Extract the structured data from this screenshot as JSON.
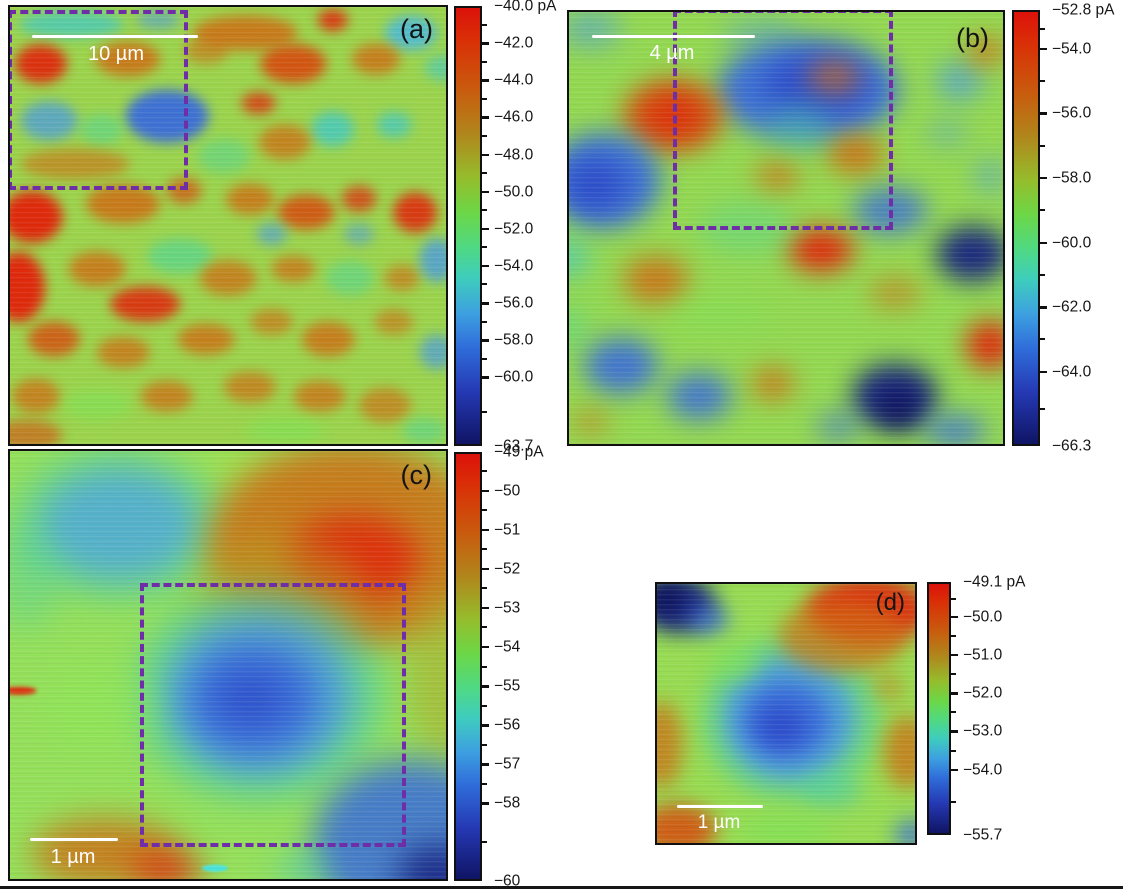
{
  "accent_colors": {
    "zoom_box_purple": "#7030a0",
    "scale_bar_white": "#ffffff"
  },
  "panels": [
    {
      "id": "a",
      "label": "(a)",
      "scale_bar": "10 µm",
      "has_zoom_box": true,
      "colorbar": {
        "unit": "pA",
        "ticks": [
          {
            "label": "−40.0 pA",
            "pos": 0
          },
          {
            "label": "−42.0",
            "pos": 0.0844
          },
          {
            "label": "−44.0",
            "pos": 0.1688
          },
          {
            "label": "−46.0",
            "pos": 0.2532
          },
          {
            "label": "−48.0",
            "pos": 0.3376
          },
          {
            "label": "−50.0",
            "pos": 0.4219
          },
          {
            "label": "−52.0",
            "pos": 0.5063
          },
          {
            "label": "−54.0",
            "pos": 0.5907
          },
          {
            "label": "−56.0",
            "pos": 0.6751
          },
          {
            "label": "−58.0",
            "pos": 0.7595
          },
          {
            "label": "−60.0",
            "pos": 0.8439
          },
          {
            "label": "−63.7",
            "pos": 1
          }
        ]
      }
    },
    {
      "id": "b",
      "label": "(b)",
      "scale_bar": "4 µm",
      "has_zoom_box": true,
      "colorbar": {
        "unit": "pA",
        "ticks": [
          {
            "label": "−52.8 pA",
            "pos": 0
          },
          {
            "label": "−54.0",
            "pos": 0.0889
          },
          {
            "label": "−56.0",
            "pos": 0.237
          },
          {
            "label": "−58.0",
            "pos": 0.3852
          },
          {
            "label": "−60.0",
            "pos": 0.5333
          },
          {
            "label": "−62.0",
            "pos": 0.6815
          },
          {
            "label": "−64.0",
            "pos": 0.8296
          },
          {
            "label": "−66.3",
            "pos": 1
          }
        ]
      }
    },
    {
      "id": "c",
      "label": "(c)",
      "scale_bar": "1 µm",
      "has_zoom_box": true,
      "colorbar": {
        "unit": "pA",
        "ticks": [
          {
            "label": "−49 pA",
            "pos": 0
          },
          {
            "label": "−50",
            "pos": 0.0909
          },
          {
            "label": "−51",
            "pos": 0.1818
          },
          {
            "label": "−52",
            "pos": 0.2727
          },
          {
            "label": "−53",
            "pos": 0.3636
          },
          {
            "label": "−54",
            "pos": 0.4545
          },
          {
            "label": "−55",
            "pos": 0.5455
          },
          {
            "label": "−56",
            "pos": 0.6364
          },
          {
            "label": "−57",
            "pos": 0.7273
          },
          {
            "label": "−58",
            "pos": 0.8182
          },
          {
            "label": "−60",
            "pos": 1
          }
        ]
      }
    },
    {
      "id": "d",
      "label": "(d)",
      "scale_bar": "1 µm",
      "has_zoom_box": false,
      "colorbar": {
        "unit": "pA",
        "ticks": [
          {
            "label": "−49.1 pA",
            "pos": 0
          },
          {
            "label": "−50.0",
            "pos": 0.1364
          },
          {
            "label": "−51.0",
            "pos": 0.2879
          },
          {
            "label": "−52.0",
            "pos": 0.4394
          },
          {
            "label": "−53.0",
            "pos": 0.5909
          },
          {
            "label": "−54.0",
            "pos": 0.7424
          },
          {
            "label": "−55.7",
            "pos": 1
          }
        ]
      }
    }
  ],
  "chart_data": [
    {
      "type": "heatmap",
      "panel": "a",
      "title": "(a)",
      "quantity": "current",
      "unit": "pA",
      "colorbar_top": -40.0,
      "colorbar_bottom": -63.7,
      "colorbar_tick_values": [
        -40.0,
        -42.0,
        -44.0,
        -46.0,
        -48.0,
        -50.0,
        -52.0,
        -54.0,
        -56.0,
        -58.0,
        -60.0,
        -63.7
      ],
      "scale_bar": "10 µm",
      "zoom_region_box": true,
      "colormap": "rainbow (red = high / less negative, dark blue = low / more negative)"
    },
    {
      "type": "heatmap",
      "panel": "b",
      "title": "(b)",
      "quantity": "current",
      "unit": "pA",
      "colorbar_top": -52.8,
      "colorbar_bottom": -66.3,
      "colorbar_tick_values": [
        -52.8,
        -54.0,
        -56.0,
        -58.0,
        -60.0,
        -62.0,
        -64.0,
        -66.3
      ],
      "scale_bar": "4 µm",
      "zoom_region_box": true,
      "colormap": "rainbow (red = high / less negative, dark blue = low / more negative)"
    },
    {
      "type": "heatmap",
      "panel": "c",
      "title": "(c)",
      "quantity": "current",
      "unit": "pA",
      "colorbar_top": -49,
      "colorbar_bottom": -60,
      "colorbar_tick_values": [
        -49,
        -50,
        -51,
        -52,
        -53,
        -54,
        -55,
        -56,
        -57,
        -58,
        -60
      ],
      "scale_bar": "1 µm",
      "zoom_region_box": true,
      "colormap": "rainbow (red = high / less negative, dark blue = low / more negative)"
    },
    {
      "type": "heatmap",
      "panel": "d",
      "title": "(d)",
      "quantity": "current",
      "unit": "pA",
      "colorbar_top": -49.1,
      "colorbar_bottom": -55.7,
      "colorbar_tick_values": [
        -49.1,
        -50.0,
        -51.0,
        -52.0,
        -53.0,
        -54.0,
        -55.7
      ],
      "scale_bar": "1 µm",
      "zoom_region_box": false,
      "colormap": "rainbow (red = high / less negative, dark blue = low / more negative)"
    }
  ]
}
